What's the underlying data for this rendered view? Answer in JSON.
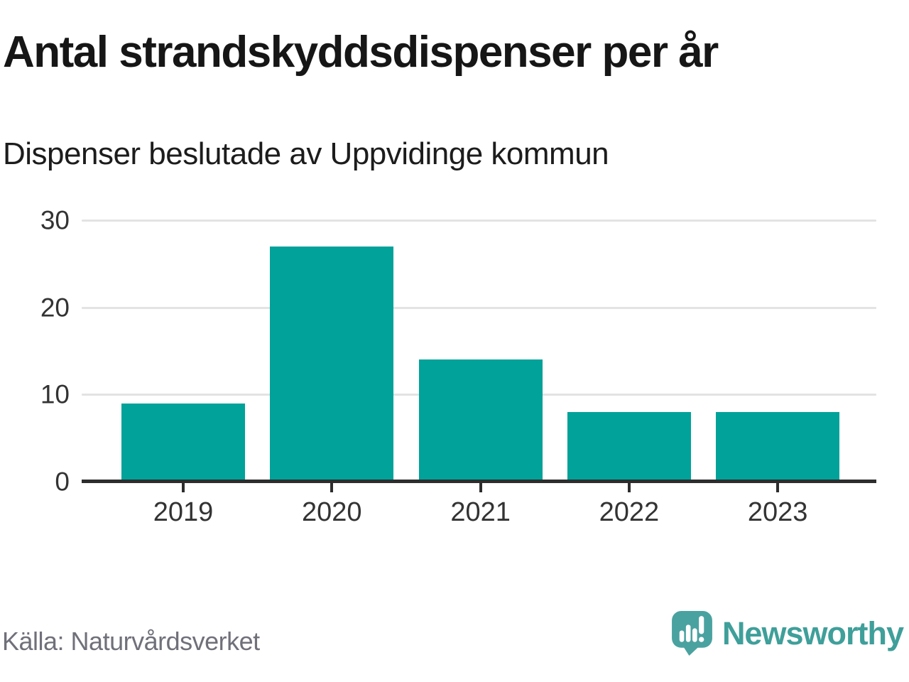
{
  "header": {
    "title": "Antal strandskyddsdispenser per år",
    "subtitle": "Dispenser beslutade av Uppvidinge kommun"
  },
  "chart_data": {
    "type": "bar",
    "categories": [
      "2019",
      "2020",
      "2021",
      "2022",
      "2023"
    ],
    "values": [
      9,
      27,
      14,
      8,
      8
    ],
    "title": "Antal strandskyddsdispenser per år",
    "subtitle": "Dispenser beslutade av Uppvidinge kommun",
    "xlabel": "",
    "ylabel": "",
    "ylim": [
      0,
      30
    ],
    "yticks": [
      0,
      10,
      20,
      30
    ],
    "grid": true,
    "legend": "none",
    "bar_color": "#00a29a"
  },
  "footer": {
    "source": "Källa: Naturvårdsverket",
    "brand": "Newsworthy"
  },
  "colors": {
    "bar": "#00a29a",
    "gridline": "#e3e3e3",
    "axis": "#2d2d2d",
    "tick_label": "#333333",
    "title": "#161616",
    "source_text": "#70707a",
    "brand_teal": "#3f9f9a",
    "logo_bubble": "#4aa2a0",
    "logo_shadow": "#3d8f8e"
  }
}
